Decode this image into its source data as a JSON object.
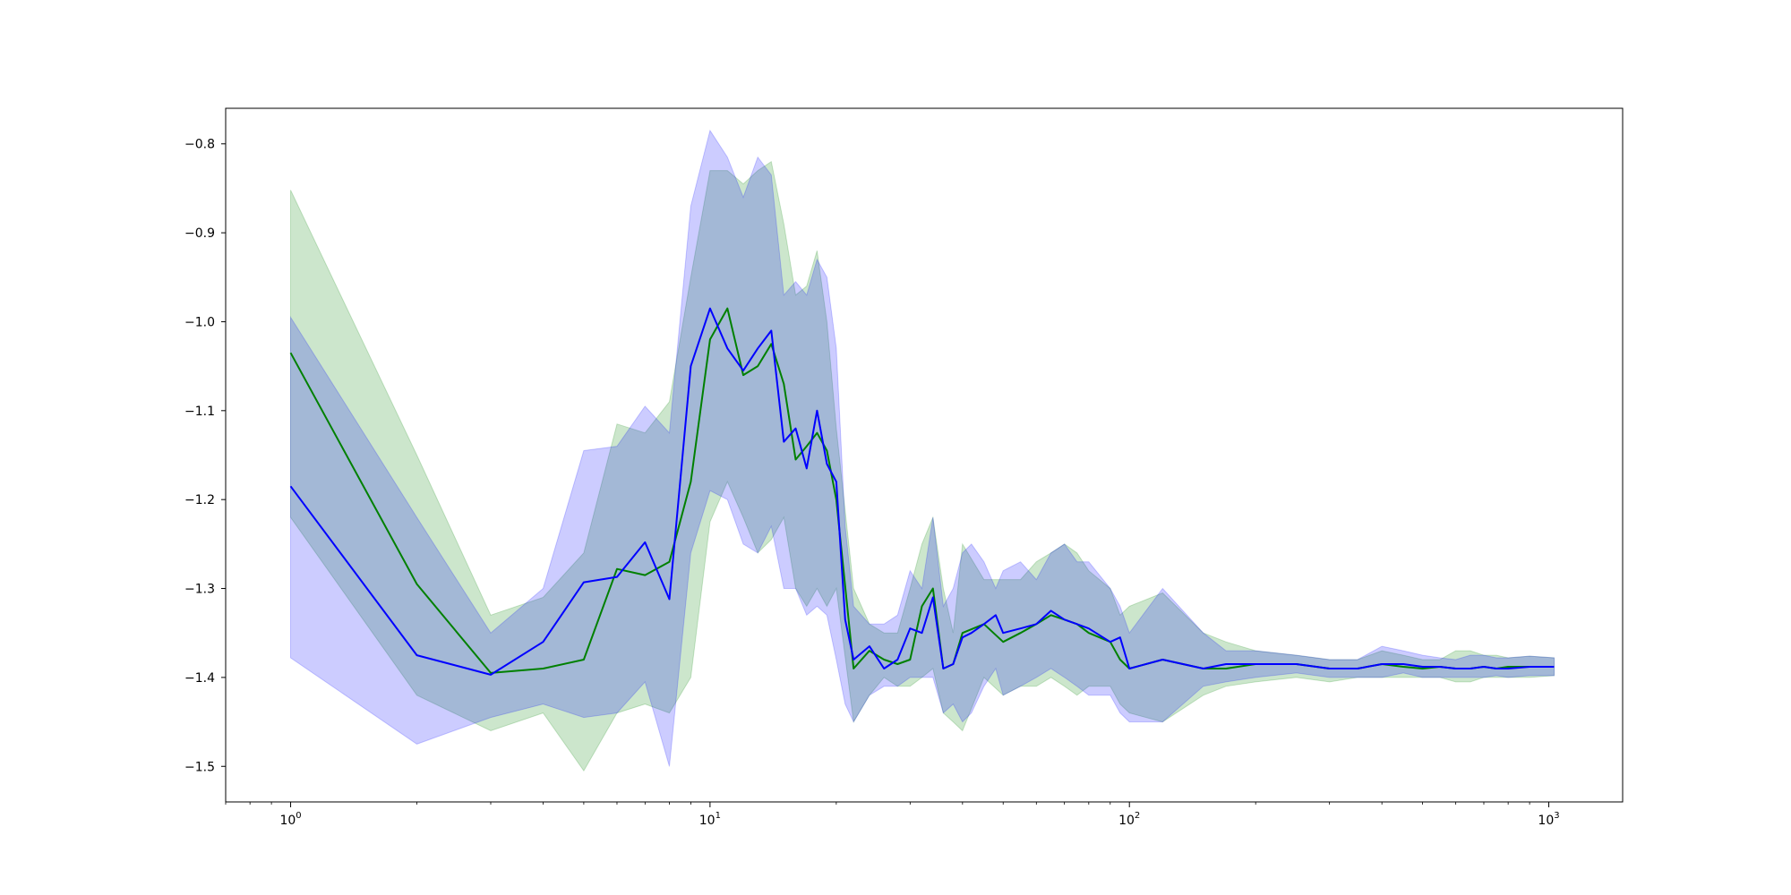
{
  "chart_data": {
    "type": "line",
    "title": "",
    "xlabel": "",
    "ylabel": "",
    "xscale": "log",
    "xlim": [
      0.7,
      1500
    ],
    "ylim": [
      -1.54,
      -0.76
    ],
    "grid": false,
    "legend": "none",
    "y_ticks": [
      {
        "value": -0.8,
        "label": "−0.8"
      },
      {
        "value": -0.9,
        "label": "−0.9"
      },
      {
        "value": -1.0,
        "label": "−1.0"
      },
      {
        "value": -1.1,
        "label": "−1.1"
      },
      {
        "value": -1.2,
        "label": "−1.2"
      },
      {
        "value": -1.3,
        "label": "−1.3"
      },
      {
        "value": -1.4,
        "label": "−1.4"
      },
      {
        "value": -1.5,
        "label": "−1.5"
      }
    ],
    "x_ticks": [
      {
        "value": 1,
        "base": "10",
        "exp": "0"
      },
      {
        "value": 10,
        "base": "10",
        "exp": "1"
      },
      {
        "value": 100,
        "base": "10",
        "exp": "2"
      },
      {
        "value": 1000,
        "base": "10",
        "exp": "3"
      }
    ],
    "series": [
      {
        "color": "#008000",
        "band_color": "#008000",
        "band_opacity": 0.2,
        "x": [
          1,
          2,
          3,
          4,
          5,
          6,
          7,
          8,
          9,
          10,
          11,
          12,
          13,
          14,
          15,
          16,
          17,
          18,
          19,
          20,
          22,
          24,
          26,
          28,
          30,
          32,
          34,
          36,
          38,
          40,
          45,
          50,
          55,
          60,
          65,
          70,
          75,
          80,
          90,
          95,
          100,
          120,
          150,
          170,
          200,
          250,
          300,
          350,
          400,
          450,
          500,
          550,
          600,
          650,
          700,
          750,
          800,
          900,
          1030
        ],
        "values": [
          -1.035,
          -1.295,
          -1.395,
          -1.39,
          -1.38,
          -1.278,
          -1.285,
          -1.27,
          -1.18,
          -1.02,
          -0.985,
          -1.06,
          -1.05,
          -1.025,
          -1.07,
          -1.155,
          -1.14,
          -1.125,
          -1.145,
          -1.2,
          -1.39,
          -1.37,
          -1.38,
          -1.385,
          -1.38,
          -1.32,
          -1.3,
          -1.39,
          -1.385,
          -1.35,
          -1.34,
          -1.36,
          -1.35,
          -1.34,
          -1.33,
          -1.335,
          -1.34,
          -1.35,
          -1.36,
          -1.38,
          -1.39,
          -1.38,
          -1.39,
          -1.39,
          -1.385,
          -1.385,
          -1.39,
          -1.39,
          -1.385,
          -1.388,
          -1.39,
          -1.388,
          -1.39,
          -1.39,
          -1.388,
          -1.39,
          -1.388,
          -1.388,
          -1.388
        ],
        "upper": [
          -0.852,
          -1.15,
          -1.33,
          -1.31,
          -1.26,
          -1.115,
          -1.125,
          -1.09,
          -0.95,
          -0.83,
          -0.83,
          -0.845,
          -0.83,
          -0.82,
          -0.89,
          -0.97,
          -0.96,
          -0.92,
          -1.0,
          -1.12,
          -1.3,
          -1.34,
          -1.35,
          -1.35,
          -1.3,
          -1.25,
          -1.22,
          -1.3,
          -1.35,
          -1.25,
          -1.29,
          -1.29,
          -1.29,
          -1.27,
          -1.26,
          -1.25,
          -1.26,
          -1.28,
          -1.3,
          -1.33,
          -1.32,
          -1.305,
          -1.35,
          -1.36,
          -1.37,
          -1.375,
          -1.38,
          -1.38,
          -1.37,
          -1.375,
          -1.38,
          -1.38,
          -1.37,
          -1.37,
          -1.375,
          -1.375,
          -1.378,
          -1.376,
          -1.378
        ],
        "lower": [
          -1.22,
          -1.42,
          -1.46,
          -1.44,
          -1.505,
          -1.44,
          -1.43,
          -1.44,
          -1.4,
          -1.225,
          -1.18,
          -1.22,
          -1.26,
          -1.245,
          -1.22,
          -1.3,
          -1.32,
          -1.3,
          -1.32,
          -1.3,
          -1.45,
          -1.42,
          -1.4,
          -1.41,
          -1.41,
          -1.4,
          -1.39,
          -1.44,
          -1.45,
          -1.46,
          -1.4,
          -1.42,
          -1.41,
          -1.41,
          -1.4,
          -1.41,
          -1.42,
          -1.41,
          -1.41,
          -1.43,
          -1.44,
          -1.45,
          -1.42,
          -1.41,
          -1.405,
          -1.4,
          -1.405,
          -1.4,
          -1.4,
          -1.4,
          -1.4,
          -1.4,
          -1.405,
          -1.405,
          -1.4,
          -1.4,
          -1.4,
          -1.4,
          -1.398
        ]
      },
      {
        "color": "#0000ff",
        "band_color": "#0000ff",
        "band_opacity": 0.2,
        "x": [
          1,
          2,
          3,
          4,
          5,
          6,
          7,
          8,
          9,
          10,
          11,
          12,
          13,
          14,
          15,
          16,
          17,
          18,
          19,
          20,
          21,
          22,
          24,
          26,
          28,
          30,
          32,
          34,
          36,
          38,
          40,
          42,
          45,
          48,
          50,
          55,
          60,
          65,
          70,
          75,
          80,
          90,
          95,
          100,
          120,
          150,
          170,
          200,
          250,
          300,
          350,
          400,
          450,
          500,
          550,
          600,
          650,
          700,
          750,
          800,
          900,
          1030
        ],
        "values": [
          -1.185,
          -1.375,
          -1.397,
          -1.36,
          -1.293,
          -1.287,
          -1.248,
          -1.312,
          -1.05,
          -0.985,
          -1.03,
          -1.055,
          -1.03,
          -1.01,
          -1.135,
          -1.12,
          -1.165,
          -1.1,
          -1.16,
          -1.18,
          -1.335,
          -1.38,
          -1.365,
          -1.39,
          -1.38,
          -1.345,
          -1.35,
          -1.31,
          -1.39,
          -1.385,
          -1.355,
          -1.35,
          -1.34,
          -1.33,
          -1.35,
          -1.345,
          -1.34,
          -1.325,
          -1.335,
          -1.34,
          -1.345,
          -1.36,
          -1.355,
          -1.39,
          -1.38,
          -1.39,
          -1.385,
          -1.385,
          -1.385,
          -1.39,
          -1.39,
          -1.385,
          -1.385,
          -1.388,
          -1.388,
          -1.39,
          -1.39,
          -1.388,
          -1.39,
          -1.39,
          -1.388,
          -1.388
        ],
        "upper": [
          -0.995,
          -1.22,
          -1.35,
          -1.3,
          -1.145,
          -1.14,
          -1.095,
          -1.125,
          -0.87,
          -0.785,
          -0.815,
          -0.86,
          -0.815,
          -0.835,
          -0.97,
          -0.955,
          -0.97,
          -0.93,
          -0.95,
          -1.03,
          -1.23,
          -1.32,
          -1.34,
          -1.34,
          -1.33,
          -1.28,
          -1.3,
          -1.22,
          -1.32,
          -1.3,
          -1.26,
          -1.25,
          -1.27,
          -1.3,
          -1.28,
          -1.27,
          -1.29,
          -1.26,
          -1.25,
          -1.27,
          -1.27,
          -1.3,
          -1.32,
          -1.35,
          -1.3,
          -1.35,
          -1.37,
          -1.37,
          -1.375,
          -1.38,
          -1.38,
          -1.365,
          -1.37,
          -1.375,
          -1.378,
          -1.38,
          -1.375,
          -1.375,
          -1.378,
          -1.378,
          -1.376,
          -1.378
        ],
        "lower": [
          -1.378,
          -1.475,
          -1.445,
          -1.43,
          -1.445,
          -1.44,
          -1.405,
          -1.5,
          -1.26,
          -1.19,
          -1.2,
          -1.25,
          -1.26,
          -1.23,
          -1.3,
          -1.3,
          -1.33,
          -1.32,
          -1.33,
          -1.38,
          -1.43,
          -1.45,
          -1.42,
          -1.41,
          -1.41,
          -1.4,
          -1.4,
          -1.4,
          -1.44,
          -1.43,
          -1.45,
          -1.44,
          -1.41,
          -1.39,
          -1.42,
          -1.41,
          -1.4,
          -1.39,
          -1.4,
          -1.41,
          -1.42,
          -1.42,
          -1.44,
          -1.45,
          -1.45,
          -1.41,
          -1.405,
          -1.4,
          -1.395,
          -1.4,
          -1.4,
          -1.4,
          -1.395,
          -1.4,
          -1.4,
          -1.4,
          -1.4,
          -1.4,
          -1.398,
          -1.4,
          -1.398,
          -1.398
        ]
      }
    ]
  }
}
